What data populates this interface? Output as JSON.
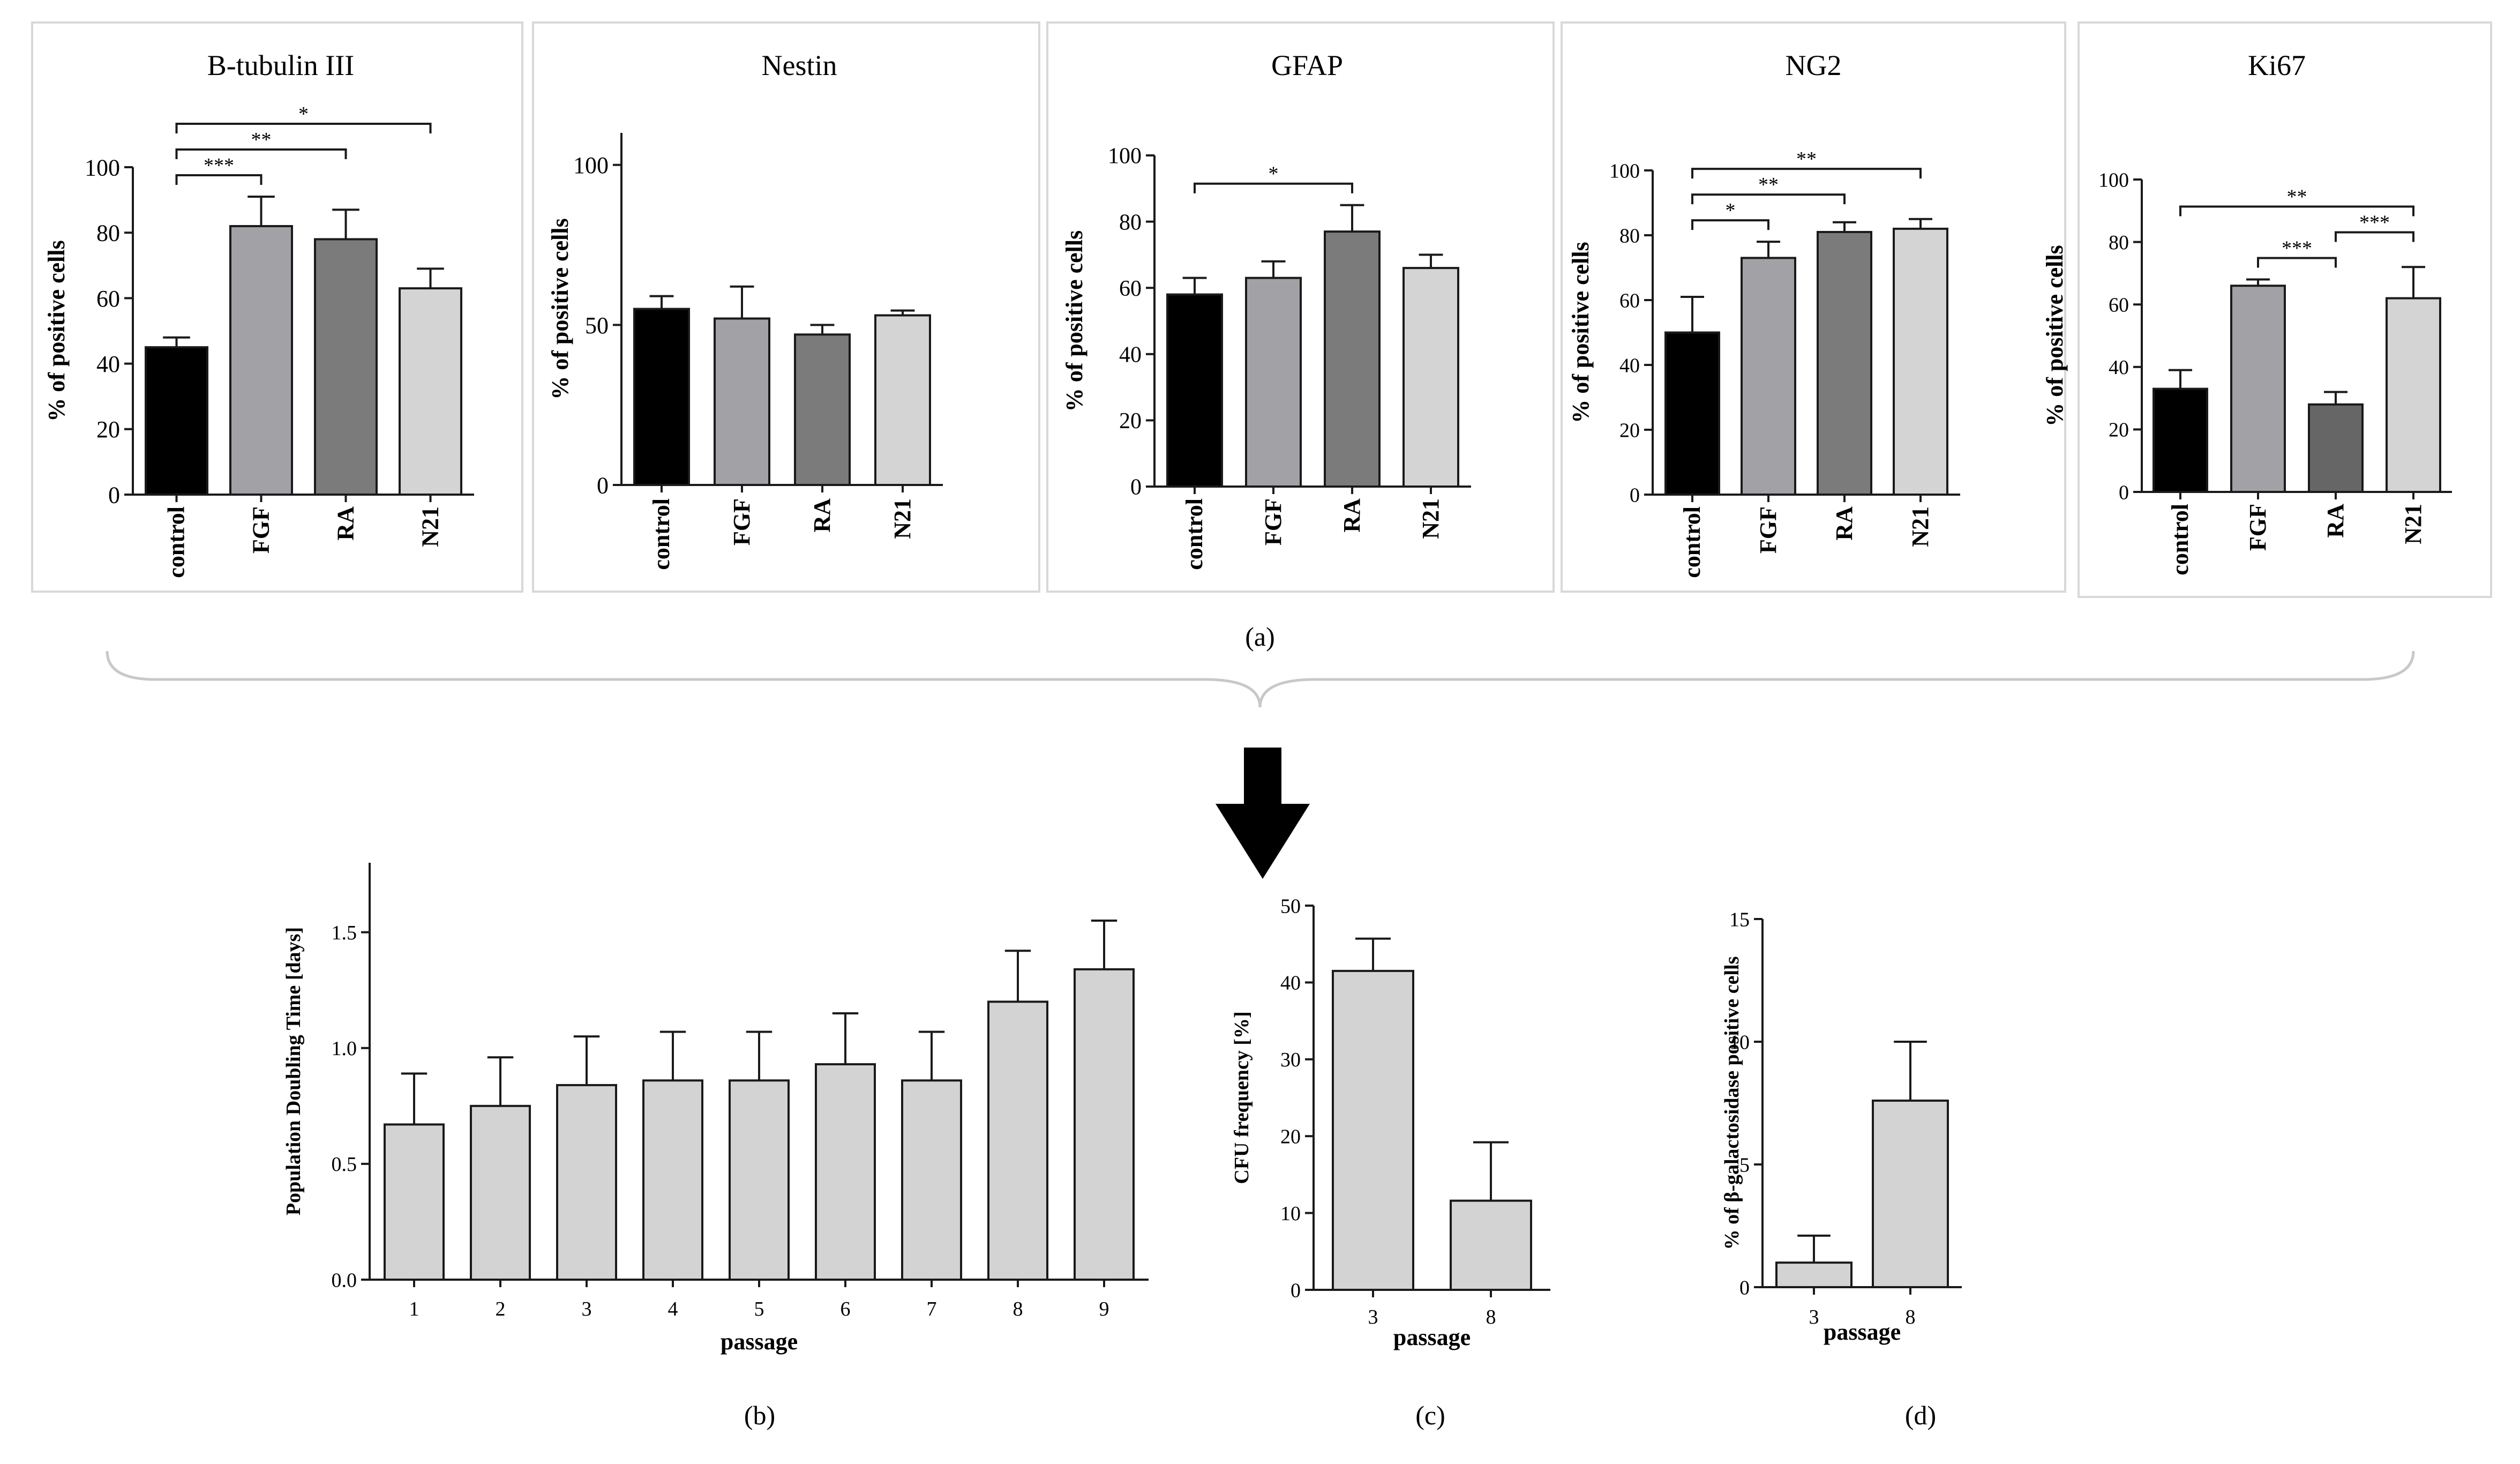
{
  "figure_labels": {
    "a": "(a)",
    "b": "(b)",
    "c": "(c)",
    "d": "(d)"
  },
  "colors": {
    "control": "#000000",
    "FGF": "#a1a1a6",
    "RA": "#7b7b7b",
    "RA_dark": "#666666",
    "N21": "#d4d4d4",
    "light": "#d3d3d3",
    "panel_border": "#d8d8d8",
    "axis": "#1a1a1a"
  },
  "chart_data": [
    {
      "id": "btub",
      "type": "bar",
      "title": "B-tubulin III",
      "categories": [
        "control",
        "FGF",
        "RA",
        "N21"
      ],
      "values": [
        45,
        82,
        78,
        63
      ],
      "errors": [
        3,
        9,
        9,
        6
      ],
      "ylabel": "% of positive cells",
      "ylim": [
        0,
        100
      ],
      "yticks": [
        "0",
        "20",
        "40",
        "60",
        "80",
        "100"
      ],
      "bar_colors": [
        "control",
        "FGF",
        "RA",
        "N21"
      ],
      "significance": [
        {
          "from": 0,
          "to": 1,
          "label": "***"
        },
        {
          "from": 0,
          "to": 2,
          "label": "**"
        },
        {
          "from": 0,
          "to": 3,
          "label": "*"
        }
      ]
    },
    {
      "id": "nestin",
      "type": "bar",
      "title": "Nestin",
      "categories": [
        "control",
        "FGF",
        "RA",
        "N21"
      ],
      "values": [
        55,
        52,
        47,
        53
      ],
      "errors": [
        4,
        10,
        3,
        1.5
      ],
      "ylabel": "% of positive cells",
      "ylim": [
        0,
        110
      ],
      "yticks": [
        "0",
        "50",
        "100"
      ],
      "bar_colors": [
        "control",
        "FGF",
        "RA",
        "N21"
      ],
      "significance": []
    },
    {
      "id": "gfap",
      "type": "bar",
      "title": "GFAP",
      "categories": [
        "control",
        "FGF",
        "RA",
        "N21"
      ],
      "values": [
        58,
        63,
        77,
        66
      ],
      "errors": [
        5,
        5,
        8,
        4
      ],
      "ylabel": "% of positive cells",
      "ylim": [
        0,
        100
      ],
      "yticks": [
        "0",
        "20",
        "40",
        "60",
        "80",
        "100"
      ],
      "bar_colors": [
        "control",
        "FGF",
        "RA",
        "N21"
      ],
      "significance": [
        {
          "from": 0,
          "to": 2,
          "label": "*"
        }
      ]
    },
    {
      "id": "ng2",
      "type": "bar",
      "title": "NG2",
      "categories": [
        "control",
        "FGF",
        "RA",
        "N21"
      ],
      "values": [
        50,
        73,
        81,
        82
      ],
      "errors": [
        11,
        5,
        3,
        3
      ],
      "ylabel": "% of positive cells",
      "ylim": [
        0,
        100
      ],
      "yticks": [
        "0",
        "20",
        "40",
        "60",
        "80",
        "100"
      ],
      "bar_colors": [
        "control",
        "FGF",
        "RA",
        "N21"
      ],
      "significance": [
        {
          "from": 0,
          "to": 1,
          "label": "*"
        },
        {
          "from": 0,
          "to": 2,
          "label": "**"
        },
        {
          "from": 0,
          "to": 3,
          "label": "**"
        }
      ]
    },
    {
      "id": "ki67",
      "type": "bar",
      "title": "Ki67",
      "categories": [
        "control",
        "FGF",
        "RA",
        "N21"
      ],
      "values": [
        33,
        66,
        28,
        62
      ],
      "errors": [
        6,
        2,
        4,
        10
      ],
      "ylabel": "% of positive cells",
      "ylim": [
        0,
        100
      ],
      "yticks": [
        "0",
        "20",
        "40",
        "60",
        "80",
        "100"
      ],
      "bar_colors": [
        "control",
        "FGF",
        "RA_dark",
        "N21"
      ],
      "significance": [
        {
          "from": 1,
          "to": 2,
          "label": "***"
        },
        {
          "from": 2,
          "to": 3,
          "label": "***"
        },
        {
          "from": 0,
          "to": 3,
          "label": "**"
        }
      ]
    },
    {
      "id": "pdt",
      "type": "bar",
      "title": "",
      "categories": [
        "1",
        "2",
        "3",
        "4",
        "5",
        "6",
        "7",
        "8",
        "9"
      ],
      "values": [
        0.67,
        0.75,
        0.84,
        0.86,
        0.86,
        0.93,
        0.86,
        1.2,
        1.34
      ],
      "errors": [
        0.22,
        0.21,
        0.21,
        0.21,
        0.21,
        0.22,
        0.21,
        0.22,
        0.21
      ],
      "xlabel": "passage",
      "ylabel": "Population Doubling Time [days]",
      "ylim": [
        0,
        1.8
      ],
      "yticks": [
        "0.0",
        "0.5",
        "1.0",
        "1.5"
      ],
      "bar_colors": [
        "light",
        "light",
        "light",
        "light",
        "light",
        "light",
        "light",
        "light",
        "light"
      ],
      "significance": []
    },
    {
      "id": "cfu",
      "type": "bar",
      "title": "",
      "categories": [
        "3",
        "8"
      ],
      "values": [
        41.5,
        11.6
      ],
      "errors": [
        4.2,
        7.6
      ],
      "xlabel": "passage",
      "ylabel": "CFU frequency [%]",
      "ylim": [
        0,
        50
      ],
      "yticks": [
        "0",
        "10",
        "20",
        "30",
        "40",
        "50"
      ],
      "bar_colors": [
        "light",
        "light"
      ],
      "significance": []
    },
    {
      "id": "bgal",
      "type": "bar",
      "title": "",
      "categories": [
        "3",
        "8"
      ],
      "values": [
        1.0,
        7.6
      ],
      "errors": [
        1.1,
        2.4
      ],
      "xlabel": "passage",
      "ylabel": "% of β-galactosidase positive cells",
      "ylim": [
        0,
        15
      ],
      "yticks": [
        "0",
        "5",
        "10",
        "15"
      ],
      "bar_colors": [
        "light",
        "light"
      ],
      "significance": []
    }
  ]
}
